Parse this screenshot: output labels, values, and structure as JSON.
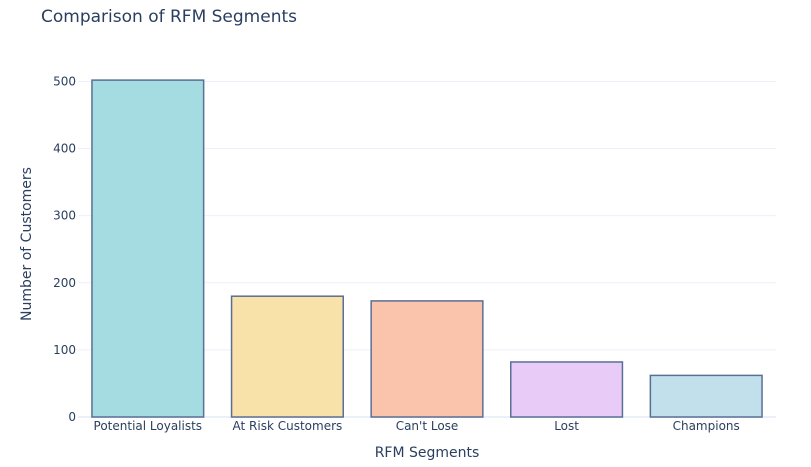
{
  "chart_data": {
    "type": "bar",
    "title": "Comparison of RFM Segments",
    "xlabel": "RFM Segments",
    "ylabel": "Number of Customers",
    "categories": [
      "Potential Loyalists",
      "At Risk Customers",
      "Can't Lose",
      "Lost",
      "Champions"
    ],
    "values": [
      502,
      180,
      173,
      82,
      62
    ],
    "ylim": [
      0,
      526
    ],
    "yticks": [
      0,
      100,
      200,
      300,
      400,
      500
    ],
    "grid": true,
    "legend": "none",
    "colors": [
      "#a4dce2",
      "#f8e2aa",
      "#f9c4ab",
      "#e8ccf7",
      "#c2dfec"
    ],
    "bar_outline_color": "#5a6f96"
  }
}
